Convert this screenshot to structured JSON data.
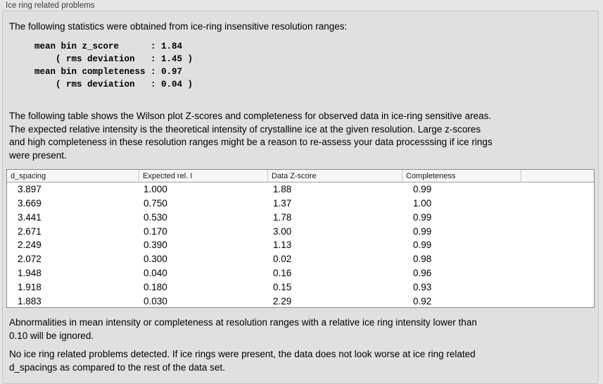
{
  "panel": {
    "title": "Ice ring related problems",
    "intro": "The following statistics were obtained from ice-ring insensitive resolution ranges:",
    "stats_block": "mean bin z_score      : 1.84\n    ( rms deviation   : 1.45 )\nmean bin completeness : 0.97\n    ( rms deviation   : 0.04 )",
    "stats": {
      "mean_bin_z_score": "1.84",
      "z_score_rms_deviation": "1.45",
      "mean_bin_completeness": "0.97",
      "completeness_rms_deviation": "0.04"
    },
    "table_description": "The following table shows the Wilson plot Z-scores and completeness for observed data in ice-ring sensitive areas.\nThe expected relative intensity is the theoretical intensity of crystalline ice at the given resolution. Large z-scores\nand high completeness in these resolution ranges might be a reason to re-assess your data processsing if ice rings\nwere present.",
    "table": {
      "columns": [
        "d_spacing",
        "Expected rel. I",
        "Data Z-score",
        "Completeness"
      ],
      "rows": [
        [
          "3.897",
          "1.000",
          "1.88",
          "0.99"
        ],
        [
          "3.669",
          "0.750",
          "1.37",
          "1.00"
        ],
        [
          "3.441",
          "0.530",
          "1.78",
          "0.99"
        ],
        [
          "2.671",
          "0.170",
          "3.00",
          "0.99"
        ],
        [
          "2.249",
          "0.390",
          "1.13",
          "0.99"
        ],
        [
          "2.072",
          "0.300",
          "0.02",
          "0.98"
        ],
        [
          "1.948",
          "0.040",
          "0.16",
          "0.96"
        ],
        [
          "1.918",
          "0.180",
          "0.15",
          "0.93"
        ],
        [
          "1.883",
          "0.030",
          "2.29",
          "0.92"
        ]
      ]
    },
    "ignore_note": "Abnormalities in mean intensity or completeness at resolution ranges with a relative ice ring intensity lower than\n0.10 will be ignored.",
    "conclusion": "No ice ring related problems detected. If ice rings were present, the data does not look worse at ice ring related\nd_spacings as compared to the rest of the data set."
  },
  "colors": {
    "page_bg": "#e6e6e6",
    "panel_bg": "#e0e0e0",
    "panel_border": "#c7c7c7",
    "table_bg": "#ffffff",
    "table_border": "#8b8b8b",
    "header_bg": "#f7f7f7"
  }
}
